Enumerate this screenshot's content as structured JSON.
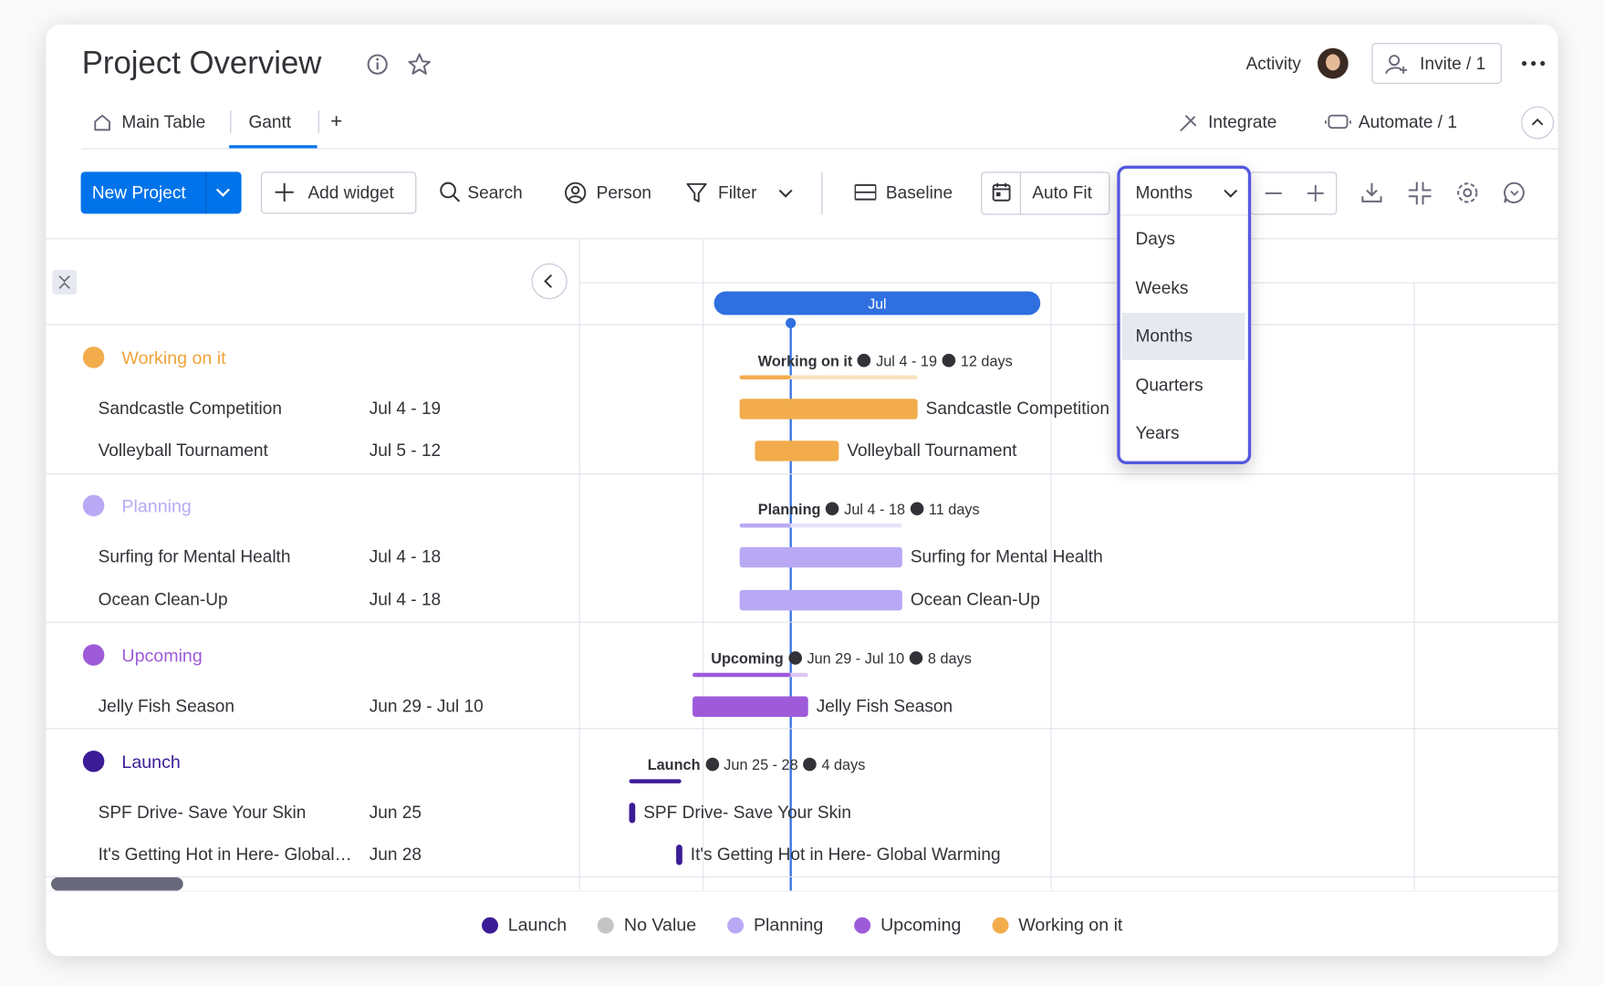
{
  "header": {
    "title": "Project Overview",
    "activity": "Activity",
    "invite": "Invite / 1"
  },
  "tabs": [
    "Main Table",
    "Gantt",
    "+"
  ],
  "integrations": {
    "integrate": "Integrate",
    "automate": "Automate / 1"
  },
  "toolbar": {
    "new_project": "New Project",
    "add_widget": "Add widget",
    "search": "Search",
    "person": "Person",
    "filter": "Filter",
    "baseline": "Baseline",
    "auto_fit": "Auto Fit",
    "zoom": "Months"
  },
  "zoom_options": [
    "Days",
    "Weeks",
    "Months",
    "Quarters",
    "Years"
  ],
  "timeline": {
    "month": "Jul"
  },
  "groups": [
    {
      "name": "Working on it",
      "color": "#f2ac4c",
      "summary": {
        "dates": "Jul 4 - 19",
        "duration": "12 days"
      },
      "items": [
        {
          "name": "Sandcastle Competition",
          "dates": "Jul 4 - 19"
        },
        {
          "name": "Volleyball Tournament",
          "dates": "Jul 5 - 12"
        }
      ]
    },
    {
      "name": "Planning",
      "color": "#b9a9f4",
      "summary": {
        "dates": "Jul 4 - 18",
        "duration": "11 days"
      },
      "items": [
        {
          "name": "Surfing for Mental Health",
          "dates": "Jul 4 - 18"
        },
        {
          "name": "Ocean Clean-Up",
          "dates": "Jul 4 - 18"
        }
      ]
    },
    {
      "name": "Upcoming",
      "color": "#9d5bd9",
      "summary": {
        "dates": "Jun 29 - Jul 10",
        "duration": "8 days"
      },
      "items": [
        {
          "name": "Jelly Fish Season",
          "dates": "Jun 29 - Jul 10"
        }
      ]
    },
    {
      "name": "Launch",
      "color": "#3c1c96",
      "summary": {
        "dates": "Jun 25 - 28",
        "duration": "4 days"
      },
      "items": [
        {
          "name": "SPF Drive- Save Your Skin",
          "dates": "Jun 25"
        },
        {
          "name": "It's Getting Hot in Here- Global Warming",
          "dates": "Jun 28"
        }
      ]
    }
  ],
  "legend": [
    {
      "name": "Launch",
      "color": "#3c1c96"
    },
    {
      "name": "No Value",
      "color": "#c4c4c4"
    },
    {
      "name": "Planning",
      "color": "#b9a9f4"
    },
    {
      "name": "Upcoming",
      "color": "#9d5bd9"
    },
    {
      "name": "Working on it",
      "color": "#f2ac4c"
    }
  ]
}
